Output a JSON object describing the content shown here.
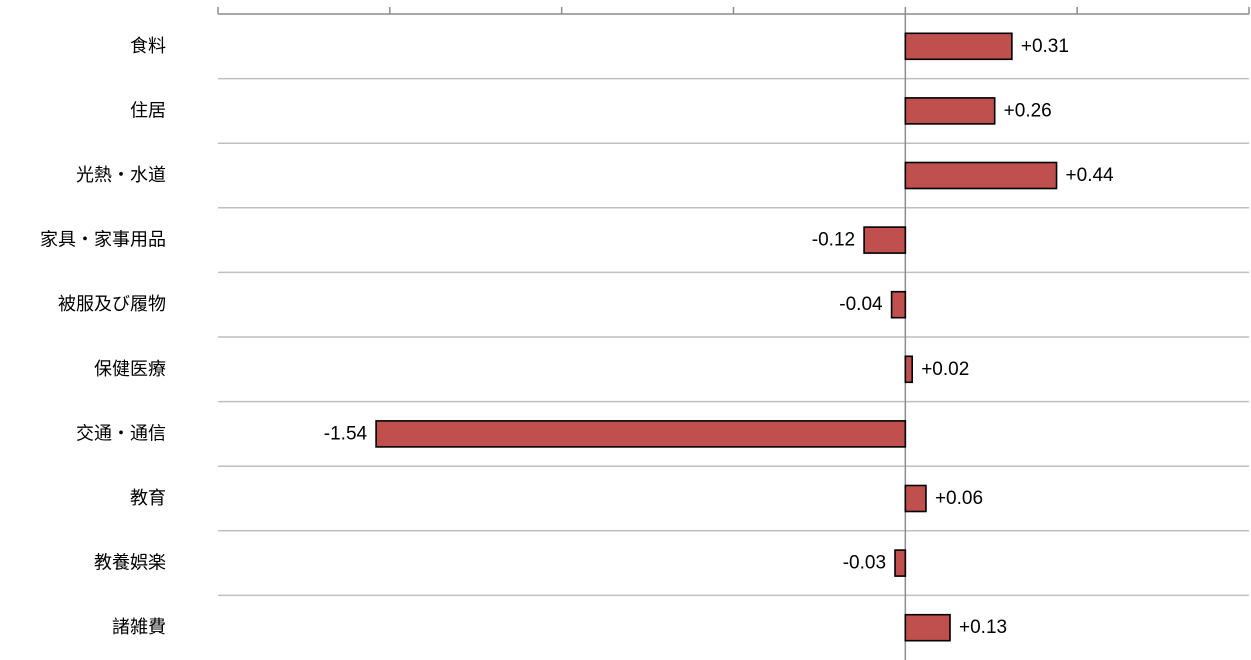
{
  "chart_data": {
    "type": "bar",
    "orientation": "horizontal",
    "categories": [
      "食料",
      "住居",
      "光熱・水道",
      "家具・家事用品",
      "被服及び履物",
      "保健医療",
      "交通・通信",
      "教育",
      "教養娯楽",
      "諸雑費"
    ],
    "values": [
      0.31,
      0.26,
      0.44,
      -0.12,
      -0.04,
      0.02,
      -1.54,
      0.06,
      -0.03,
      0.13
    ],
    "data_labels": [
      "+0.31",
      "+0.26",
      "+0.44",
      "-0.12",
      "-0.04",
      "+0.02",
      "-1.54",
      "+0.06",
      "-0.03",
      "+0.13"
    ],
    "xlim": [
      -2.0,
      1.0
    ],
    "x_ticks": [
      -2.0,
      -1.5,
      -1.0,
      -0.5,
      0.0,
      0.5,
      1.0
    ],
    "x_tick_labels_shown": false,
    "title": "",
    "xlabel": "",
    "ylabel": "",
    "grid": "horizontal separators between categories",
    "legend": "none",
    "colors": {
      "bar_fill": "#c0504d",
      "bar_stroke": "#000000",
      "grid": "#bfbfbf",
      "axis": "#8c8c8c"
    }
  }
}
